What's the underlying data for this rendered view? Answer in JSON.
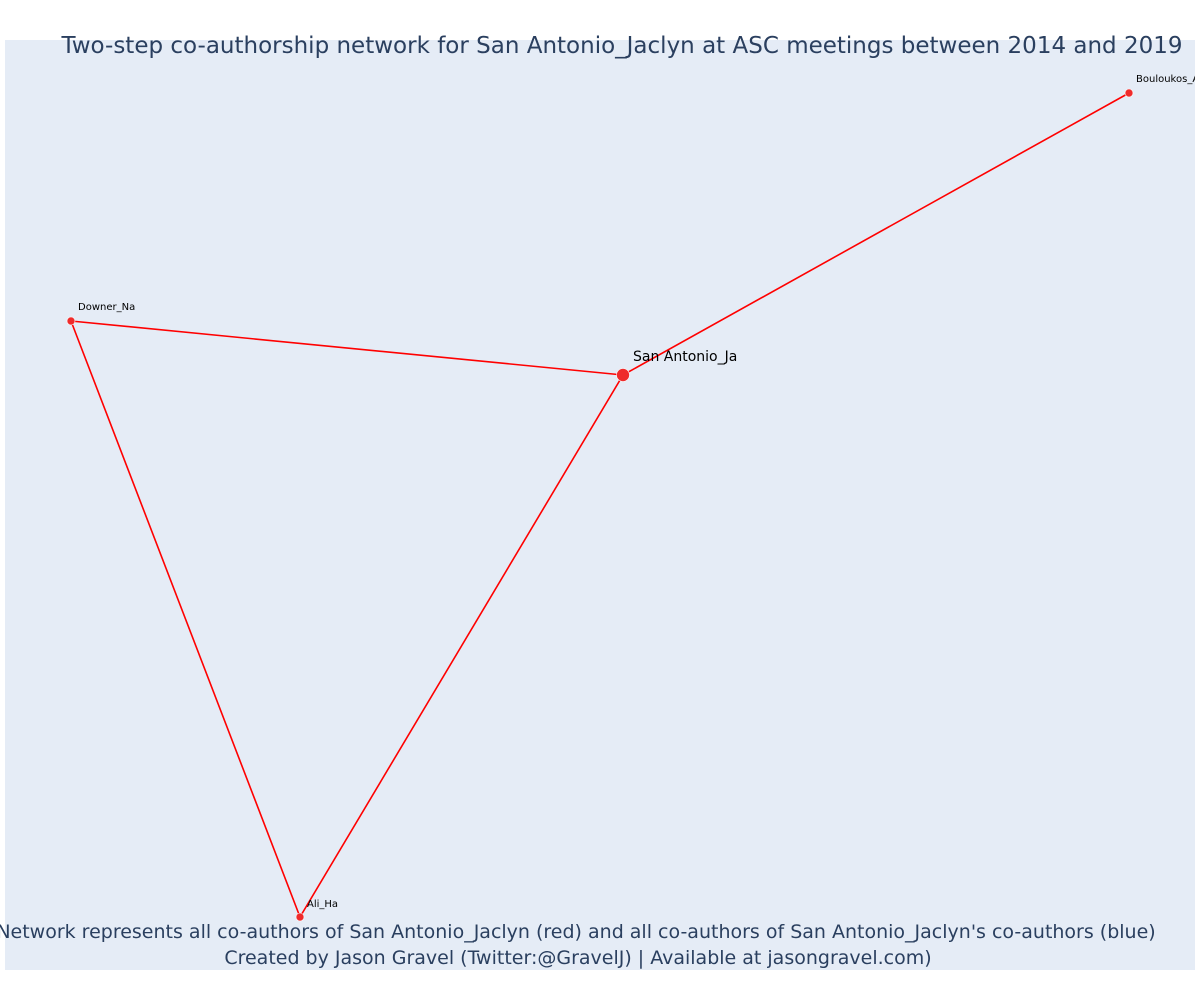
{
  "title": "Two-step co-authorship network for San Antonio_Jaclyn at ASC meetings between 2014 and 2019",
  "caption_line1": "Network represents all co-authors of San Antonio_Jaclyn (red) and all co-authors of San Antonio_Jaclyn's co-authors (blue)",
  "caption_line2": "Created by Jason Gravel (Twitter:@GravelJ) | Available at jasongravel.com)",
  "colors": {
    "background": "#e5ecf6",
    "edge": "#ff0000",
    "node_red": "#ef2b2b",
    "text": "#2a3f5f"
  },
  "chart_data": {
    "type": "network",
    "nodes": [
      {
        "id": "San Antonio_Ja",
        "label": "San Antonio_Ja",
        "group": "focal",
        "color": "red"
      },
      {
        "id": "Bouloukos_A",
        "label": "Bouloukos_A",
        "group": "co-author",
        "color": "red"
      },
      {
        "id": "Downer_Na",
        "label": "Downer_Na",
        "group": "co-author",
        "color": "red"
      },
      {
        "id": "Ali_Ha",
        "label": "Ali_Ha",
        "group": "co-author",
        "color": "red"
      }
    ],
    "edges": [
      {
        "source": "San Antonio_Ja",
        "target": "Bouloukos_A"
      },
      {
        "source": "San Antonio_Ja",
        "target": "Downer_Na"
      },
      {
        "source": "San Antonio_Ja",
        "target": "Ali_Ha"
      },
      {
        "source": "Downer_Na",
        "target": "Ali_Ha"
      }
    ]
  }
}
